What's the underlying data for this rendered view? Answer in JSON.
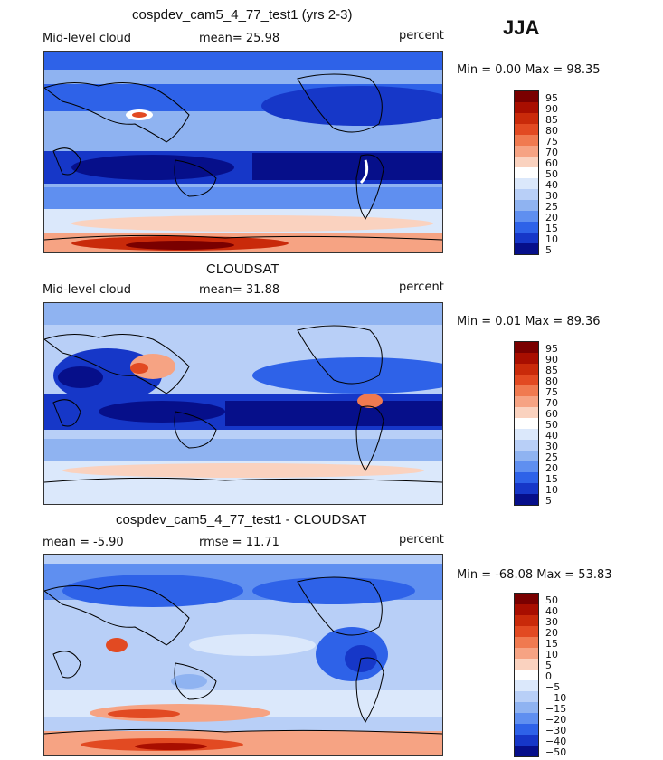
{
  "season": "JJA",
  "units": "percent",
  "panels": [
    {
      "title": "cospdev_cam5_4_77_test1 (yrs 2-3)",
      "left": "Mid-level cloud",
      "mean_text": "mean=  25.98",
      "units": "percent",
      "range_text": "Min =   0.00 Max =  98.35",
      "ticks": [
        "95",
        "90",
        "85",
        "80",
        "75",
        "70",
        "60",
        "50",
        "40",
        "30",
        "25",
        "20",
        "15",
        "10",
        "5"
      ]
    },
    {
      "title": "CLOUDSAT",
      "left": "Mid-level cloud",
      "mean_text": "mean=  31.88",
      "units": "percent",
      "range_text": "Min =   0.01 Max =  89.36",
      "ticks": [
        "95",
        "90",
        "85",
        "80",
        "75",
        "70",
        "60",
        "50",
        "40",
        "30",
        "25",
        "20",
        "15",
        "10",
        "5"
      ]
    },
    {
      "title": "cospdev_cam5_4_77_test1 - CLOUDSAT",
      "left": "mean =  -5.90",
      "mean_text": "rmse =  11.71",
      "units": "percent",
      "range_text": "Min = -68.08 Max =  53.83",
      "ticks": [
        "50",
        "40",
        "30",
        "20",
        "15",
        "10",
        "5",
        "0",
        "−5",
        "−10",
        "−15",
        "−20",
        "−30",
        "−40",
        "−50"
      ]
    }
  ],
  "colors": {
    "abs_scale": [
      "#7a0000",
      "#a80e00",
      "#c92a0a",
      "#e24a22",
      "#f07a50",
      "#f6a383",
      "#fad2bf",
      "#ffffff",
      "#dbe8fb",
      "#b8cff7",
      "#8fb3f1",
      "#5f8ff0",
      "#2e62e8",
      "#1637c8",
      "#060f8a"
    ],
    "diff_scale": [
      "#7a0000",
      "#a80e00",
      "#c92a0a",
      "#e24a22",
      "#f07a50",
      "#f6a383",
      "#fad2bf",
      "#ffffff",
      "#dbe8fb",
      "#b8cff7",
      "#8fb3f1",
      "#5f8ff0",
      "#2e62e8",
      "#1637c8",
      "#060f8a"
    ]
  },
  "chart_data": [
    {
      "type": "heatmap",
      "title": "cospdev_cam5_4_77_test1 (yrs 2-3)",
      "variable": "Mid-level cloud",
      "season": "JJA",
      "units": "percent",
      "mean": 25.98,
      "min": 0.0,
      "max": 98.35,
      "colorbar_levels": [
        5,
        10,
        15,
        20,
        25,
        30,
        40,
        50,
        60,
        70,
        75,
        80,
        85,
        90,
        95
      ]
    },
    {
      "type": "heatmap",
      "title": "CLOUDSAT",
      "variable": "Mid-level cloud",
      "season": "JJA",
      "units": "percent",
      "mean": 31.88,
      "min": 0.01,
      "max": 89.36,
      "colorbar_levels": [
        5,
        10,
        15,
        20,
        25,
        30,
        40,
        50,
        60,
        70,
        75,
        80,
        85,
        90,
        95
      ]
    },
    {
      "type": "heatmap",
      "title": "cospdev_cam5_4_77_test1 - CLOUDSAT",
      "season": "JJA",
      "units": "percent",
      "mean": -5.9,
      "rmse": 11.71,
      "min": -68.08,
      "max": 53.83,
      "colorbar_levels": [
        -50,
        -40,
        -30,
        -20,
        -15,
        -10,
        -5,
        0,
        5,
        10,
        15,
        20,
        30,
        40,
        50
      ]
    }
  ]
}
